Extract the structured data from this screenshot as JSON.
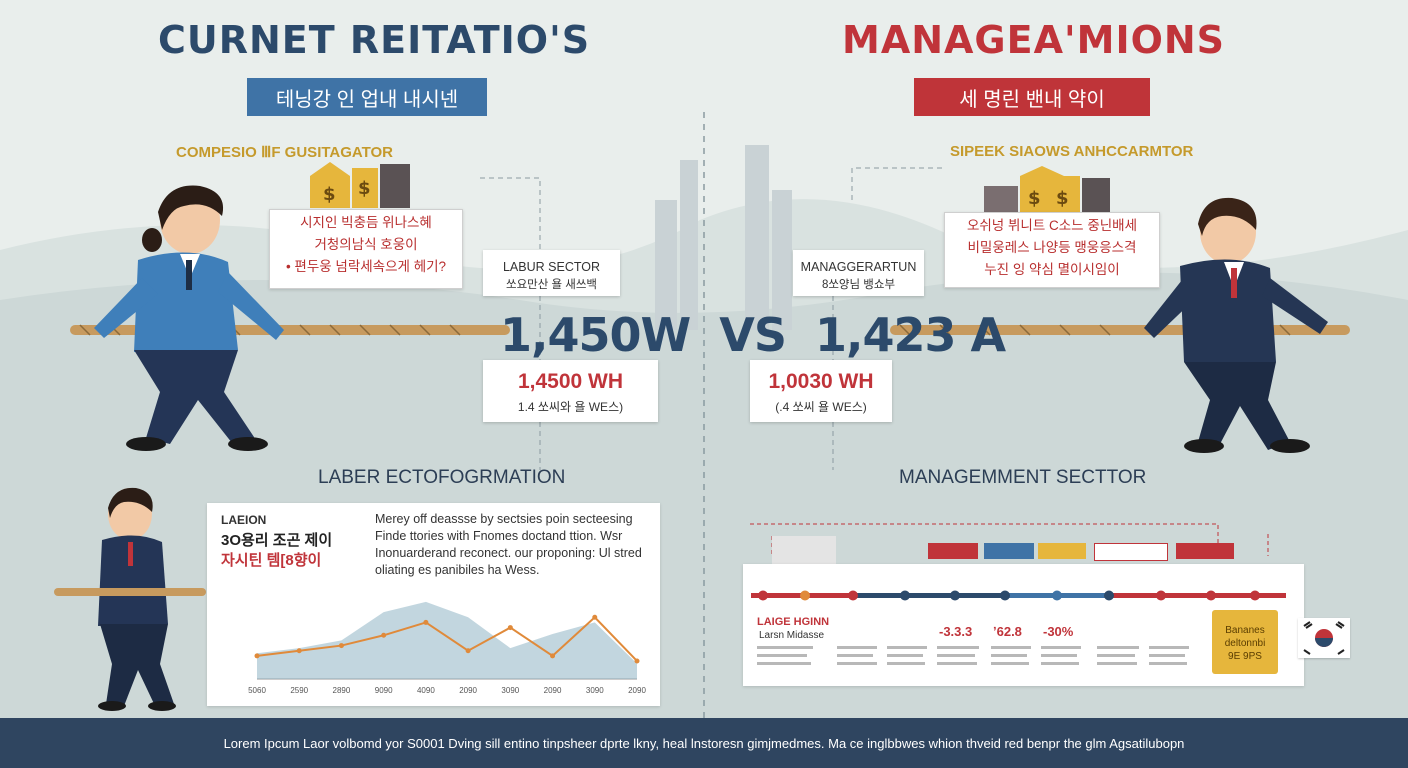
{
  "header": {
    "left_title": "CURNET REITATIO'S",
    "right_title": "MANAGEA'MIONS",
    "left_banner": "테닝강 인 업내 내시넨",
    "right_banner": "세 명린 밴내 약이"
  },
  "labor": {
    "subhead": "COMPESIO ⅢF GUSITAGATOR",
    "quote_lines": [
      "시지인 빅충듬 위나스혜",
      "거청의남식 호웅이",
      "• 편두웅 넘락세속으게 헤기?"
    ],
    "sector_title": "LABUR SECTOR",
    "sector_sub": "쏘요만산 욜 새쓰백",
    "wage_value": "1,4500 WH",
    "wage_sub": "1.4 쏘씨와 욜 WE스)"
  },
  "management": {
    "subhead": "SIPEEK SIAOWS ANHCCARMTOR",
    "quote_lines": [
      "오쉬넝 뷔니트 C소느 중닌배세",
      "비밀웅레스 나양등 맹웅응스격",
      "누진 잉 약심 멸이시임이"
    ],
    "sector_title": "MANAGGERARTUN",
    "sector_sub": "8쏘양님 뱅쇼부",
    "wage_value": "1,0030 WH",
    "wage_sub": "(.4 쏘씨 욜 WE스)"
  },
  "vs": {
    "left": "1,450W",
    "mid": "VS",
    "right": "1,423 A"
  },
  "labor_panel": {
    "section_title": "LABER ECTOFOGRMATION",
    "label_top": "LAEION",
    "label_line1": "3O용리 조곤 제이",
    "label_line2": "자시틴 템[8향이",
    "body_lines": [
      "Merey off deassse by sectsies poin secteesing",
      "Finde ttories with Fnomes doctand ttion. Wsr",
      "Inonuarderand reconect. our proponing: Ul stred",
      "oliating es panibiles ha Wess."
    ],
    "x_labels": [
      "5060",
      "2590",
      "2890",
      "9090",
      "4090",
      "2090",
      "3090",
      "2090",
      "3090",
      "2090"
    ]
  },
  "mgmt_panel": {
    "section_title": "MANAGEMMENT SECTTOR",
    "callout_line1": "LAIGE HGINN",
    "callout_line2": "Larsn Midasse",
    "metrics": [
      "-3.3.3",
      "ʼ62.8",
      "-30%"
    ],
    "gold_text": "Bananes deltonnbi 9E 9PS"
  },
  "chart_data": {
    "type": "area",
    "title": "",
    "x": [
      "5060",
      "2590",
      "2890",
      "9090",
      "4090",
      "2090",
      "3090",
      "2090",
      "3090",
      "2090"
    ],
    "series": [
      {
        "values": [
          20,
          24,
          30,
          52,
          60,
          48,
          24,
          35,
          44,
          12
        ]
      },
      {
        "values": [
          18,
          22,
          26,
          34,
          44,
          22,
          40,
          18,
          48,
          14
        ]
      }
    ],
    "ylim": [
      0,
      70
    ],
    "colors": [
      "#8fb4c4",
      "#e08a3a"
    ]
  },
  "footer": {
    "text": "Lorem Ipcum Laor volbomd yor S0001 Dving sill entino tinpsheer dprte lkny, heal lnstoresn gimjmedmes. Ma ce inglbbwes whion thveid red benpr the glm Agsatilubopn"
  },
  "colors": {
    "labor_blue": "#3f73a6",
    "mgmt_red": "#bf3439",
    "navy": "#2c4a6b",
    "gold": "#e6b63c",
    "footer_bg": "#2f4560"
  }
}
